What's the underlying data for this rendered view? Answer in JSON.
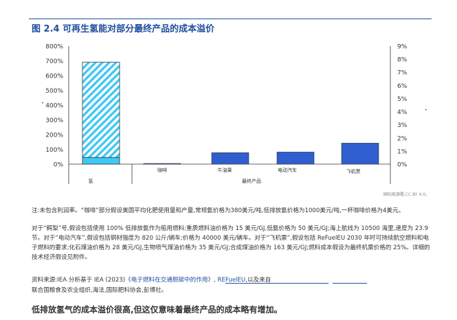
{
  "figure": {
    "title": "图 2.4 可再生氢能对部分最终产品的成本溢价",
    "credit": "国际能源署,CC BY 4.0。"
  },
  "chart_data": {
    "type": "bar",
    "categories": [
      "氢",
      "咖啡",
      "牛油果",
      "电动汽车",
      "飞机票"
    ],
    "category_group_label": "最终产品",
    "y_left": {
      "ticks": [
        "0%",
        "100%",
        "200%",
        "300%",
        "400%",
        "500%",
        "600%",
        "700%",
        "800%"
      ],
      "ylim": [
        0,
        800
      ]
    },
    "y_right": {
      "ticks": [
        "0%",
        "1%",
        "2%",
        "3%",
        "4%",
        "5%",
        "6%",
        "7%",
        "8%",
        "9%"
      ],
      "ylim": [
        0,
        9
      ]
    },
    "hydrogen_bar": {
      "axis": "left",
      "total": 690,
      "base": 45,
      "base_color": "#40c8f4",
      "hatch_color": "#40c8f4"
    },
    "series": [
      {
        "axis": "right",
        "values": [
          null,
          0.05,
          0.87,
          0.92,
          1.6
        ],
        "color": "#2f5fce"
      }
    ],
    "grid": false,
    "legend": "none"
  },
  "notes": {
    "note1": "注:未包含利润率。“咖啡”部分假设美国平均化肥使用量和产量,常规氨价格为380美元/吨,低排放氨价格为1000美元/吨,一杯咖啡价格为4美元。",
    "note2": "对于“鳄梨”号,假设包括使用 100% 低排放氨作为船用燃料;重质燃料油价格为 15 美元/GJ,低氨价格为 50 美元/GJ;海上航线为 10500 海里,速度为 23.9 节。对于“电动汽车”,假设包括钢材强度为 820 公斤/辆车;价格为 40000 美元/辆车。对于“飞机票”,假设包括 ReFuelEU 2030 年时可持续航空燃料和电子燃料的要求;化石煤油价格为 28 美元/GJ,生物喷气煤油价格为 35 美元/GJ;合成煤油价格为 163 美元/GJ;燃料成本假设为最终机票价格的 25%。详细的技术经济假设见附件。"
  },
  "sources": {
    "prefix": "资料来源:IEA 分析基于 IEA (2023)",
    "link1": "《电子燃料在交通脱碳中的作用》",
    "sep": ", ",
    "link2": "REFuelEU",
    "suffix": ",以及来自",
    "line2": "联合国粮食及农业组织,海法,国际肥料协会,彭博社。"
  },
  "summary": "低排放氢气的成本溢价很高,但这仅意味着最终产品的成本略有增加。"
}
